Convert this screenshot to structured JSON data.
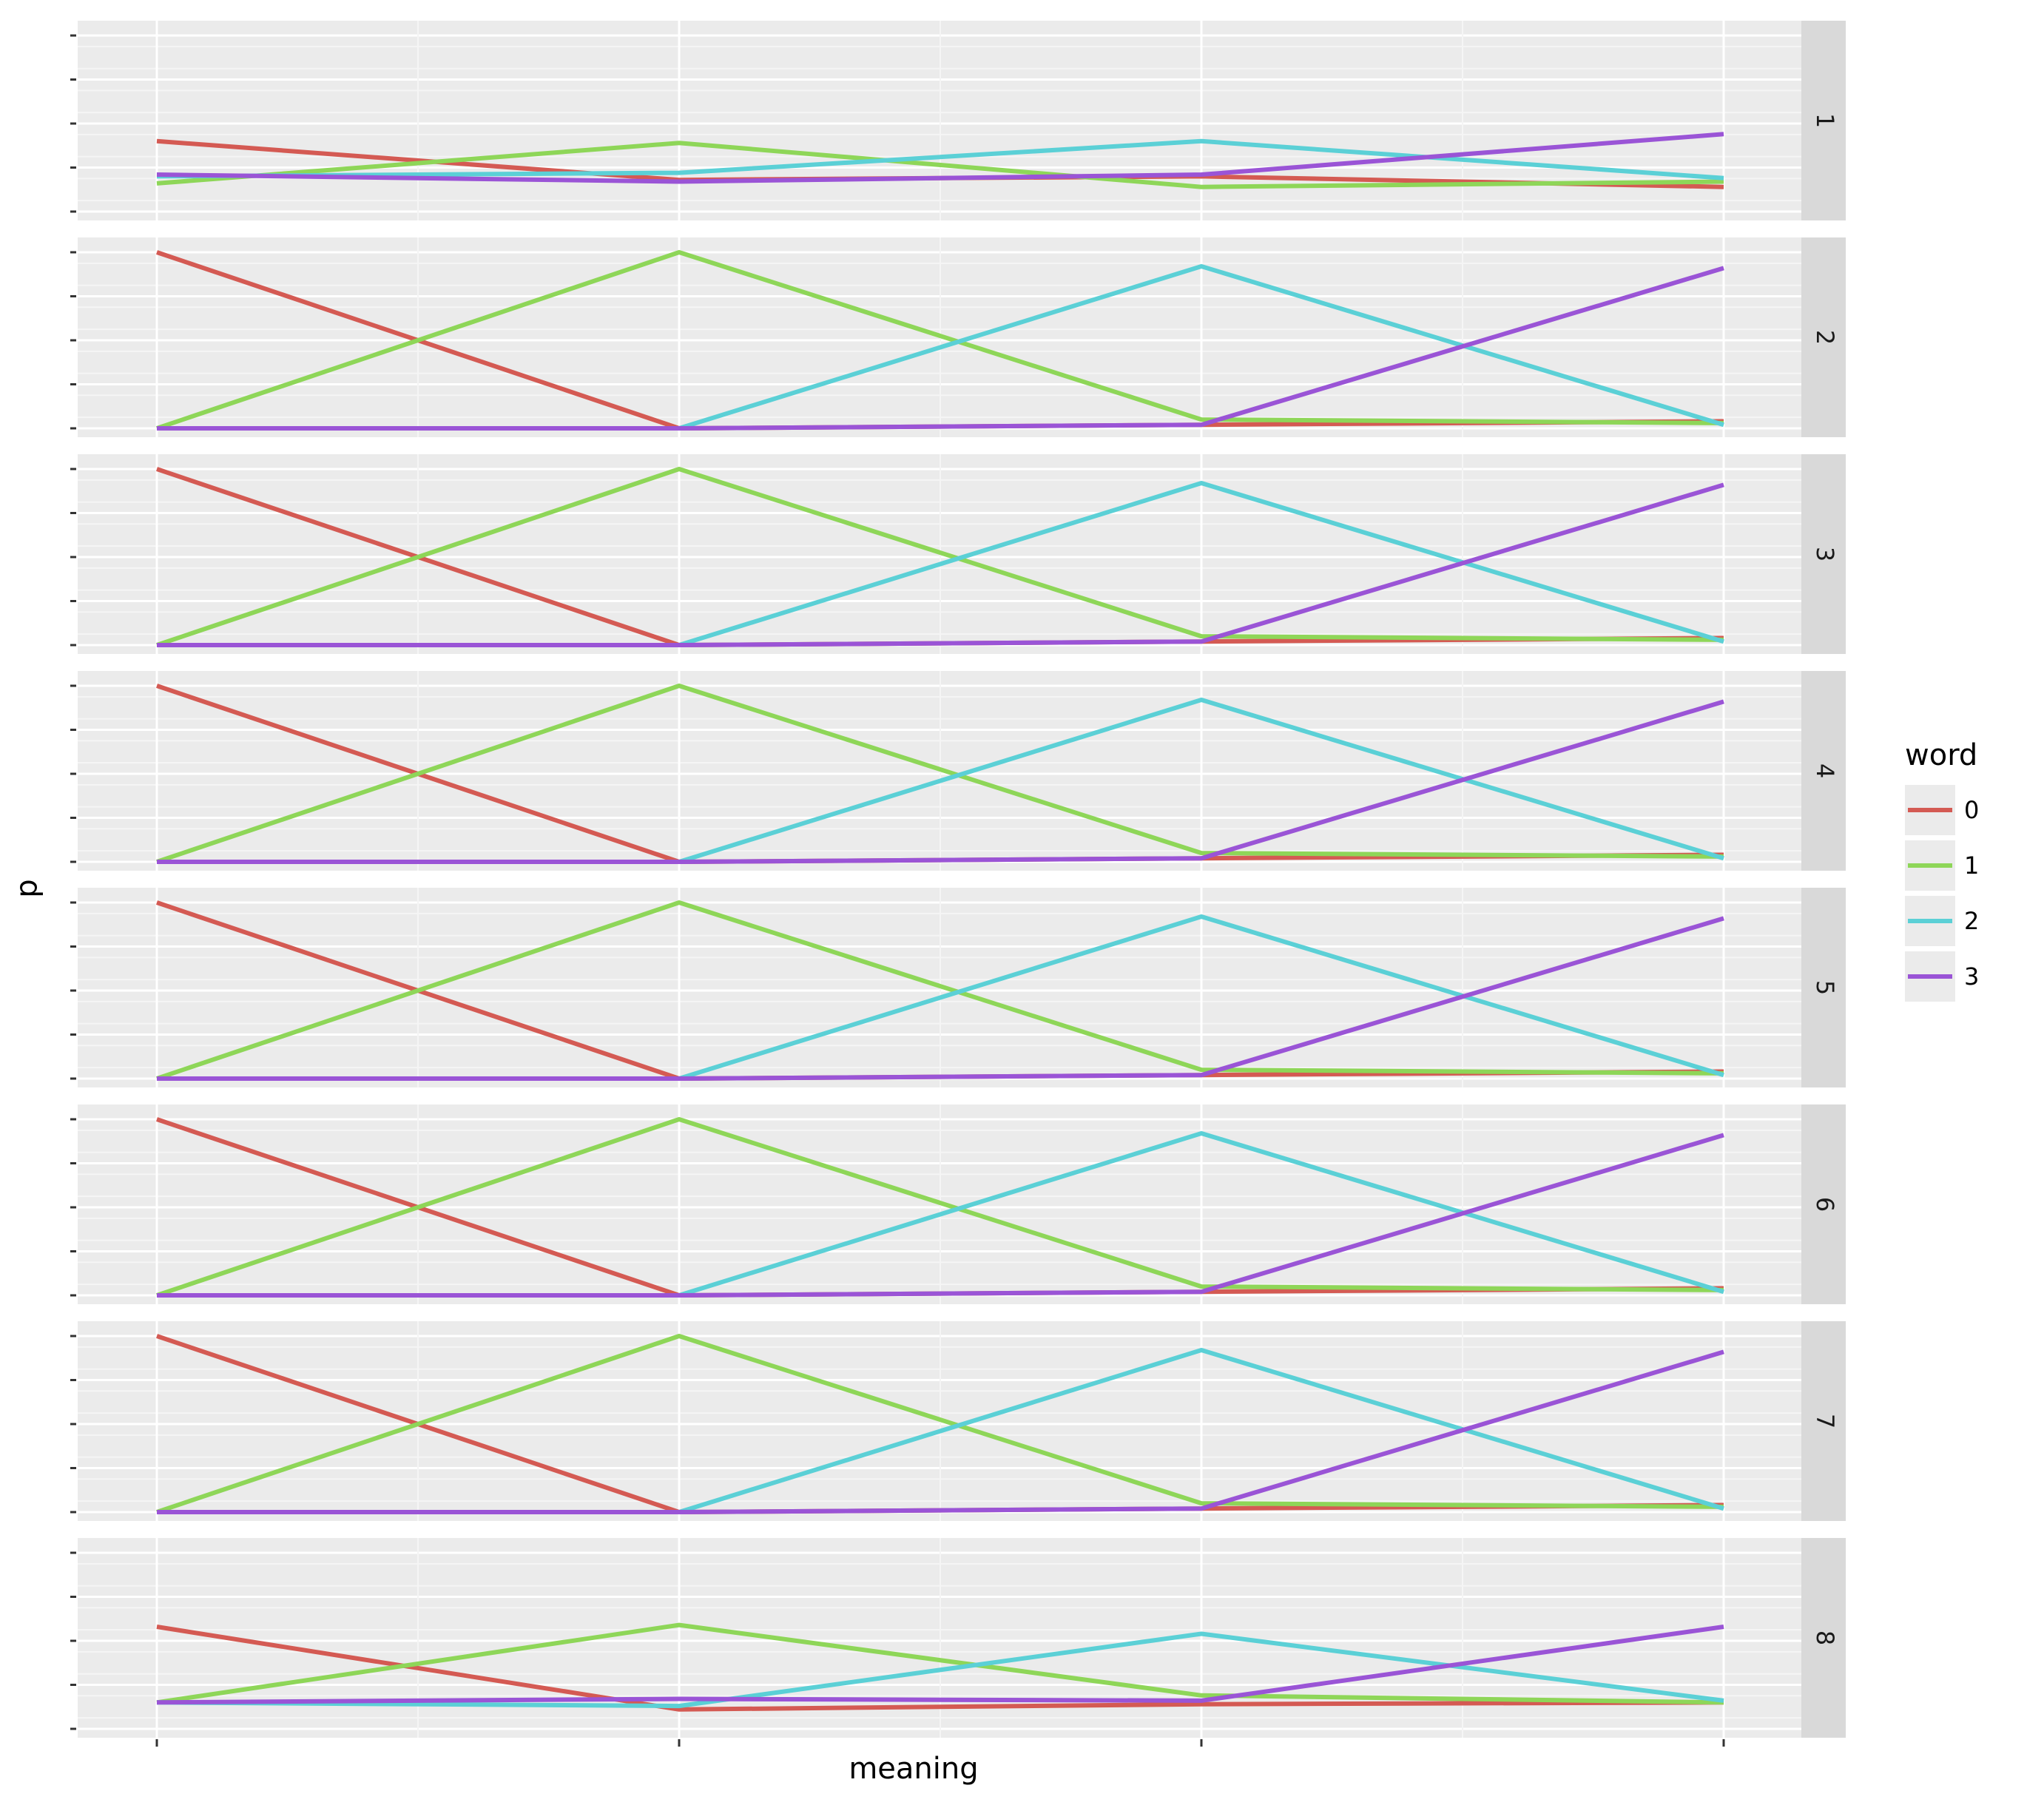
{
  "chart_data": {
    "type": "line",
    "facet_var": "panel",
    "panels": [
      "1",
      "2",
      "3",
      "4",
      "5",
      "6",
      "7",
      "8"
    ],
    "x": [
      0,
      1,
      2,
      3
    ],
    "xlabel": "meaning",
    "ylabel": "p",
    "ylim": [
      0,
      1
    ],
    "grid": true,
    "legend": {
      "title": "word",
      "position": "right"
    },
    "colors": {
      "0": "#d45a53",
      "1": "#8ed658",
      "2": "#5bd0d6",
      "3": "#9a54d6"
    },
    "series": [
      {
        "name": "0",
        "values_by_panel": [
          [
            0.4,
            0.18,
            0.2,
            0.14
          ],
          [
            1.0,
            0.0,
            0.02,
            0.04
          ],
          [
            1.0,
            0.0,
            0.02,
            0.04
          ],
          [
            1.0,
            0.0,
            0.02,
            0.04
          ],
          [
            1.0,
            0.0,
            0.02,
            0.04
          ],
          [
            1.0,
            0.0,
            0.02,
            0.04
          ],
          [
            1.0,
            0.0,
            0.02,
            0.04
          ],
          [
            0.58,
            0.11,
            0.14,
            0.15
          ]
        ]
      },
      {
        "name": "1",
        "values_by_panel": [
          [
            0.16,
            0.39,
            0.14,
            0.17
          ],
          [
            0.0,
            1.0,
            0.05,
            0.03
          ],
          [
            0.0,
            1.0,
            0.05,
            0.03
          ],
          [
            0.0,
            1.0,
            0.05,
            0.03
          ],
          [
            0.0,
            1.0,
            0.05,
            0.03
          ],
          [
            0.0,
            1.0,
            0.05,
            0.03
          ],
          [
            0.0,
            1.0,
            0.05,
            0.03
          ],
          [
            0.15,
            0.59,
            0.19,
            0.15
          ]
        ]
      },
      {
        "name": "2",
        "values_by_panel": [
          [
            0.2,
            0.22,
            0.4,
            0.19
          ],
          [
            0.0,
            0.0,
            0.92,
            0.02
          ],
          [
            0.0,
            0.0,
            0.92,
            0.02
          ],
          [
            0.0,
            0.0,
            0.92,
            0.02
          ],
          [
            0.0,
            0.0,
            0.92,
            0.02
          ],
          [
            0.0,
            0.0,
            0.92,
            0.02
          ],
          [
            0.0,
            0.0,
            0.92,
            0.02
          ],
          [
            0.15,
            0.13,
            0.54,
            0.16
          ]
        ]
      },
      {
        "name": "3",
        "values_by_panel": [
          [
            0.21,
            0.17,
            0.21,
            0.44
          ],
          [
            0.0,
            0.0,
            0.02,
            0.91
          ],
          [
            0.0,
            0.0,
            0.02,
            0.91
          ],
          [
            0.0,
            0.0,
            0.02,
            0.91
          ],
          [
            0.0,
            0.0,
            0.02,
            0.91
          ],
          [
            0.0,
            0.0,
            0.02,
            0.91
          ],
          [
            0.0,
            0.0,
            0.02,
            0.91
          ],
          [
            0.15,
            0.17,
            0.16,
            0.58
          ]
        ]
      }
    ]
  }
}
